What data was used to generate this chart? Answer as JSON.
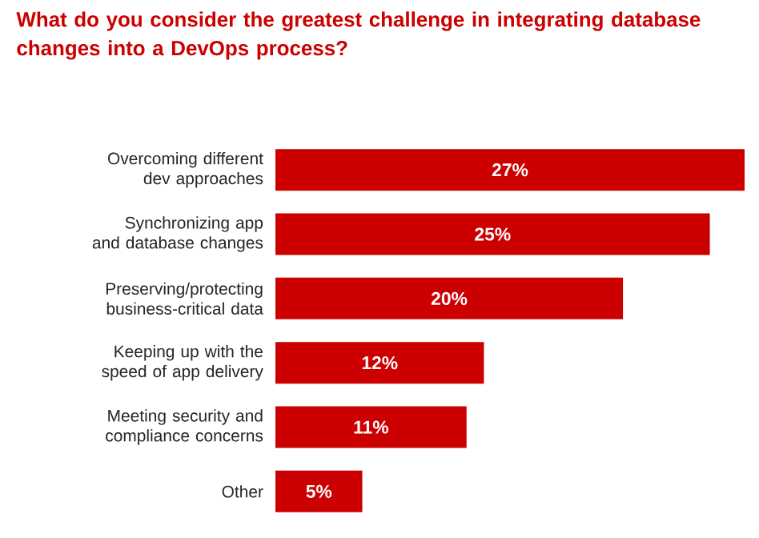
{
  "chart_data": {
    "type": "bar",
    "orientation": "horizontal",
    "title": "What do you consider the greatest challenge in integrating database changes into a DevOps process?",
    "categories": [
      "Overcoming different dev approaches",
      "Synchronizing app and database changes",
      "Preserving/protecting business-critical data",
      "Keeping up with the speed of app delivery",
      "Meeting security and compliance concerns",
      "Other"
    ],
    "values": [
      27,
      25,
      20,
      12,
      11,
      5
    ],
    "value_labels": [
      "27%",
      "25%",
      "20%",
      "12%",
      "11%",
      "5%"
    ],
    "color": "#cc0000"
  }
}
